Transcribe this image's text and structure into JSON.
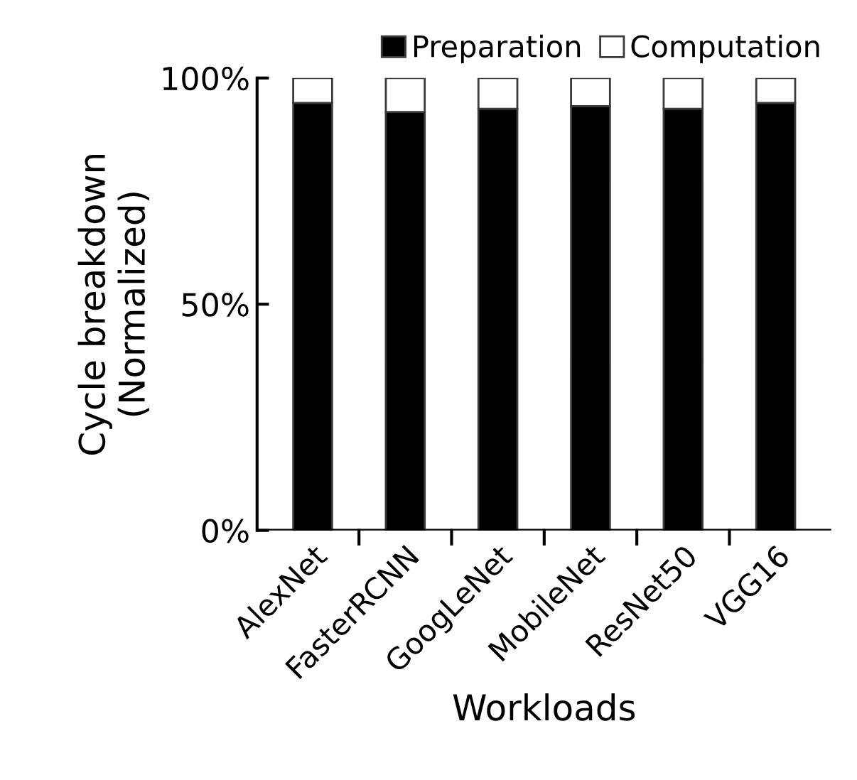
{
  "chart_data": {
    "type": "bar",
    "stacked": true,
    "xlabel": "Workloads",
    "ylabel": "Cycle breakdown\n(Normalized)",
    "categories": [
      "AlexNet",
      "FasterRCNN",
      "GoogLeNet",
      "MobileNet",
      "ResNet50",
      "VGG16"
    ],
    "series": [
      {
        "name": "Preparation",
        "color": "#000000",
        "values": [
          94.5,
          92.5,
          93.2,
          93.8,
          93.2,
          94.5
        ]
      },
      {
        "name": "Computation",
        "color": "#ffffff",
        "values": [
          5.5,
          7.5,
          6.8,
          6.2,
          6.8,
          5.5
        ]
      }
    ],
    "ylim": [
      0,
      100
    ],
    "yticks": [
      {
        "value": 0,
        "label": "0%"
      },
      {
        "value": 50,
        "label": "50%"
      },
      {
        "value": 100,
        "label": "100%"
      }
    ],
    "legend": "top",
    "grid": false
  }
}
